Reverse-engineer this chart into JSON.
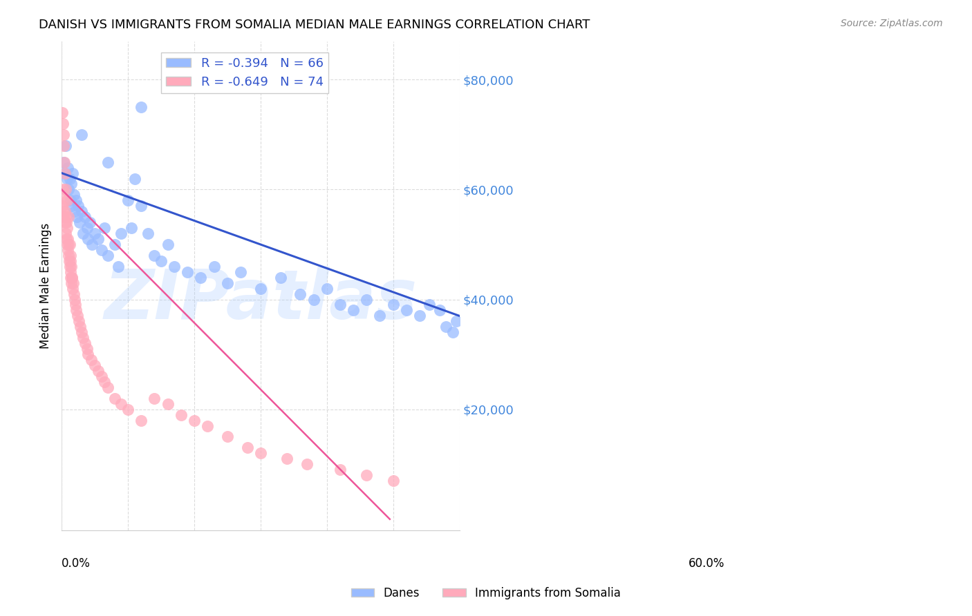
{
  "title": "DANISH VS IMMIGRANTS FROM SOMALIA MEDIAN MALE EARNINGS CORRELATION CHART",
  "source": "Source: ZipAtlas.com",
  "ylabel": "Median Male Earnings",
  "ytick_labels": [
    "$20,000",
    "$40,000",
    "$60,000",
    "$80,000"
  ],
  "ytick_values": [
    20000,
    40000,
    60000,
    80000
  ],
  "ymax": 87000,
  "ymin": -2000,
  "xmin": 0.0,
  "xmax": 0.6,
  "legend_blue_r": "-0.394",
  "legend_blue_n": "66",
  "legend_pink_r": "-0.649",
  "legend_pink_n": "74",
  "blue_color": "#99bbff",
  "pink_color": "#ffaabb",
  "line_blue": "#3355cc",
  "line_pink": "#ee5599",
  "watermark": "ZIPatlas",
  "blue_line_x": [
    0.0,
    0.6
  ],
  "blue_line_y": [
    63000,
    37000
  ],
  "pink_line_x": [
    0.0,
    0.495
  ],
  "pink_line_y": [
    60000,
    0
  ],
  "danes_x": [
    0.003,
    0.005,
    0.006,
    0.008,
    0.009,
    0.01,
    0.012,
    0.013,
    0.015,
    0.016,
    0.017,
    0.019,
    0.02,
    0.022,
    0.023,
    0.025,
    0.027,
    0.03,
    0.032,
    0.035,
    0.038,
    0.04,
    0.043,
    0.046,
    0.05,
    0.055,
    0.06,
    0.065,
    0.07,
    0.08,
    0.085,
    0.09,
    0.1,
    0.105,
    0.11,
    0.12,
    0.13,
    0.14,
    0.15,
    0.16,
    0.17,
    0.19,
    0.21,
    0.23,
    0.25,
    0.27,
    0.3,
    0.33,
    0.36,
    0.38,
    0.4,
    0.42,
    0.44,
    0.46,
    0.48,
    0.5,
    0.52,
    0.54,
    0.555,
    0.57,
    0.58,
    0.59,
    0.595,
    0.03,
    0.07,
    0.12
  ],
  "danes_y": [
    65000,
    63000,
    68000,
    62000,
    64000,
    60000,
    62000,
    58000,
    61000,
    57000,
    63000,
    59000,
    56000,
    58000,
    55000,
    57000,
    54000,
    56000,
    52000,
    55000,
    53000,
    51000,
    54000,
    50000,
    52000,
    51000,
    49000,
    53000,
    48000,
    50000,
    46000,
    52000,
    58000,
    53000,
    62000,
    57000,
    52000,
    48000,
    47000,
    50000,
    46000,
    45000,
    44000,
    46000,
    43000,
    45000,
    42000,
    44000,
    41000,
    40000,
    42000,
    39000,
    38000,
    40000,
    37000,
    39000,
    38000,
    37000,
    39000,
    38000,
    35000,
    34000,
    36000,
    70000,
    65000,
    75000
  ],
  "somalia_x": [
    0.001,
    0.002,
    0.002,
    0.003,
    0.004,
    0.005,
    0.005,
    0.006,
    0.006,
    0.007,
    0.007,
    0.008,
    0.008,
    0.009,
    0.009,
    0.01,
    0.01,
    0.011,
    0.012,
    0.013,
    0.013,
    0.014,
    0.015,
    0.015,
    0.016,
    0.017,
    0.018,
    0.019,
    0.02,
    0.021,
    0.022,
    0.024,
    0.026,
    0.028,
    0.03,
    0.032,
    0.035,
    0.038,
    0.04,
    0.045,
    0.05,
    0.055,
    0.06,
    0.065,
    0.07,
    0.08,
    0.09,
    0.1,
    0.12,
    0.14,
    0.16,
    0.18,
    0.2,
    0.22,
    0.25,
    0.28,
    0.3,
    0.34,
    0.37,
    0.42,
    0.46,
    0.5,
    0.002,
    0.003,
    0.005,
    0.004,
    0.006,
    0.008,
    0.01,
    0.012,
    0.014,
    0.016,
    0.001,
    0.003
  ],
  "somalia_y": [
    57000,
    60000,
    56000,
    55000,
    58000,
    54000,
    56000,
    52000,
    55000,
    51000,
    54000,
    50000,
    53000,
    49000,
    51000,
    48000,
    50000,
    47000,
    46000,
    48000,
    45000,
    44000,
    46000,
    43000,
    44000,
    42000,
    43000,
    41000,
    40000,
    39000,
    38000,
    37000,
    36000,
    35000,
    34000,
    33000,
    32000,
    31000,
    30000,
    29000,
    28000,
    27000,
    26000,
    25000,
    24000,
    22000,
    21000,
    20000,
    18000,
    22000,
    21000,
    19000,
    18000,
    17000,
    15000,
    13000,
    12000,
    11000,
    10000,
    9000,
    8000,
    7000,
    72000,
    68000,
    63000,
    65000,
    60000,
    58000,
    55000,
    50000,
    47000,
    44000,
    74000,
    70000
  ]
}
